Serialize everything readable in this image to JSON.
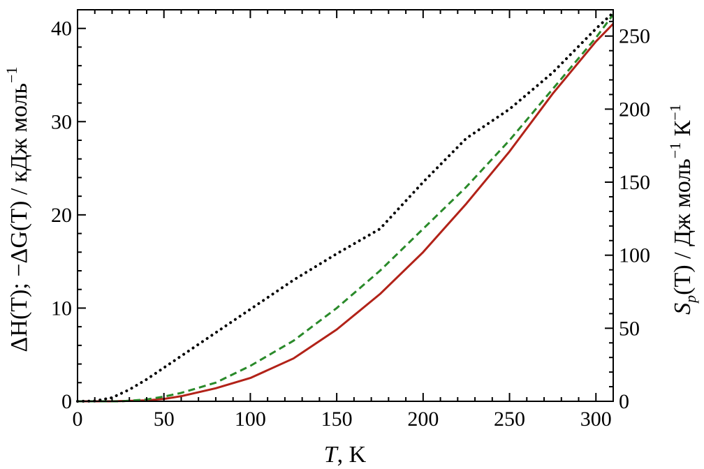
{
  "chart_data": {
    "type": "line",
    "x_axis": {
      "label_italic": "T",
      "label_unit": ", K",
      "range": [
        0,
        310
      ],
      "ticks": [
        0,
        50,
        100,
        150,
        200,
        250,
        300
      ],
      "tick_labels": [
        "0",
        "50",
        "100",
        "150",
        "200",
        "250",
        "300"
      ]
    },
    "y_left_axis": {
      "label": "ΔH(T); −ΔG(T) / кДж моль",
      "label_superscript": "−1",
      "range": [
        0,
        42
      ],
      "ticks": [
        0,
        10,
        20,
        30,
        40
      ],
      "tick_labels": [
        "0",
        "10",
        "20",
        "30",
        "40"
      ]
    },
    "y_right_axis": {
      "label_main": "S",
      "label_subscript": "p",
      "label_rest": "(T) / Дж моль",
      "label_superscript_1": "−1",
      "label_unit": " К",
      "label_superscript_2": "−1",
      "range": [
        0,
        268
      ],
      "ticks": [
        0,
        50,
        100,
        150,
        200,
        250
      ],
      "tick_labels": [
        "0",
        "50",
        "100",
        "150",
        "200",
        "250"
      ]
    },
    "series": [
      {
        "axis": "left",
        "color": "#b22218",
        "style": "solid",
        "x": [
          0,
          20,
          30,
          40,
          50,
          60,
          80,
          100,
          125,
          150,
          175,
          200,
          225,
          250,
          275,
          300,
          310
        ],
        "y": [
          0,
          0,
          0.05,
          0.1,
          0.25,
          0.55,
          1.4,
          2.5,
          4.6,
          7.7,
          11.5,
          16.0,
          21.2,
          26.8,
          33.0,
          38.6,
          40.5
        ]
      },
      {
        "axis": "left",
        "color": "#2a8a2a",
        "style": "dashed",
        "x": [
          0,
          25,
          40,
          50,
          60,
          80,
          100,
          125,
          150,
          175,
          200,
          225,
          250,
          275,
          300,
          310
        ],
        "y": [
          0,
          0,
          0.2,
          0.5,
          0.9,
          2.0,
          3.8,
          6.5,
          10.0,
          14.0,
          18.5,
          23.0,
          28.0,
          33.5,
          39.0,
          41.5
        ]
      },
      {
        "axis": "right",
        "color": "#000000",
        "style": "dotted",
        "x": [
          0,
          10,
          20,
          30,
          40,
          50,
          60,
          70,
          80,
          100,
          125,
          150,
          175,
          200,
          225,
          250,
          275,
          300,
          310
        ],
        "y": [
          0,
          0.2,
          2.5,
          8,
          15,
          23,
          31,
          39,
          47,
          63,
          83,
          101,
          118,
          150,
          180,
          200,
          225,
          255,
          266
        ]
      }
    ],
    "grid": false,
    "legend": "none",
    "ticks_direction": "inward"
  }
}
